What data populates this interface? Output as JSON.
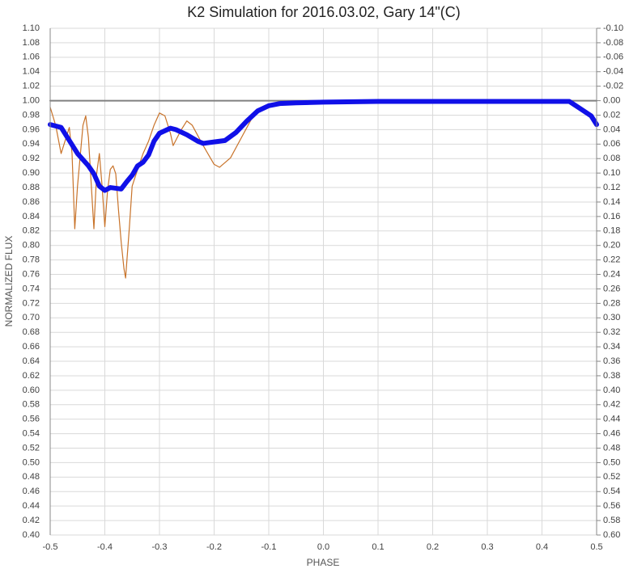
{
  "chart_data": {
    "type": "line",
    "title": "K2 Simulation for 2016.03.02, Gary 14\"(C)",
    "x_label": "PHASE",
    "y_label": "NORMALIZED FLUX",
    "xlim": [
      -0.5,
      0.5
    ],
    "xticks": [
      -0.5,
      -0.4,
      -0.3,
      -0.2,
      -0.1,
      {
        "value": 0,
        "label": "0.0"
      },
      0.1,
      0.2,
      0.3,
      0.4,
      0.5
    ],
    "ylim": [
      0.4,
      1.1
    ],
    "yticks": [
      {
        "value": 0.4,
        "label": "0.40"
      },
      0.42,
      0.44,
      0.46,
      0.48,
      {
        "value": 0.5,
        "label": "0.50"
      },
      0.52,
      0.54,
      0.56,
      0.58,
      {
        "value": 0.6,
        "label": "0.60"
      },
      0.62,
      0.64,
      0.66,
      0.68,
      {
        "value": 0.7,
        "label": "0.70"
      },
      0.72,
      0.74,
      0.76,
      0.78,
      {
        "value": 0.8,
        "label": "0.80"
      },
      0.82,
      0.84,
      0.86,
      0.88,
      {
        "value": 0.9,
        "label": "0.90"
      },
      0.92,
      0.94,
      0.96,
      0.98,
      {
        "value": 1,
        "label": "1.00"
      },
      1.02,
      1.04,
      1.06,
      1.08,
      {
        "value": 1.1,
        "label": "1.10"
      }
    ],
    "y2lim": [
      0.6,
      -0.1
    ],
    "y2ticks": [
      {
        "value": -0.1,
        "label": "-0.10"
      },
      -0.08,
      -0.06,
      -0.04,
      -0.02,
      {
        "value": 0,
        "label": "0.00"
      },
      0.02,
      0.04,
      0.06,
      0.08,
      {
        "value": 0.1,
        "label": "0.10"
      },
      0.12,
      0.14,
      0.16,
      0.18,
      {
        "value": 0.2,
        "label": "0.20"
      },
      0.22,
      0.24,
      0.26,
      0.28,
      {
        "value": 0.3,
        "label": "0.30"
      },
      0.32,
      0.34,
      0.36,
      0.38,
      {
        "value": 0.4,
        "label": "0.40"
      },
      0.42,
      0.44,
      0.46,
      0.48,
      {
        "value": 0.5,
        "label": "0.50"
      },
      0.52,
      0.54,
      0.56,
      0.58,
      {
        "value": 0.6,
        "label": "0.60"
      }
    ],
    "grid": true,
    "series": [
      {
        "color": "#808080",
        "width": 2,
        "x": [
          -0.5,
          0.5
        ],
        "values": [
          1,
          1
        ]
      },
      {
        "color": "#c8732a",
        "width": 1.2,
        "x": [
          -0.5,
          -0.49,
          -0.48,
          -0.465,
          -0.46,
          -0.455,
          -0.45,
          -0.44,
          -0.435,
          -0.43,
          -0.42,
          -0.415,
          -0.41,
          -0.405,
          -0.4,
          -0.395,
          -0.39,
          -0.385,
          -0.38,
          -0.375,
          -0.37,
          -0.365,
          -0.362,
          -0.355,
          -0.35,
          -0.34,
          -0.33,
          -0.32,
          -0.31,
          -0.3,
          -0.29,
          -0.28,
          -0.275,
          -0.26,
          -0.25,
          -0.24,
          -0.22,
          -0.2,
          -0.19,
          -0.17,
          -0.15,
          -0.13,
          -0.11,
          -0.09,
          -0.06,
          0
        ],
        "values": [
          0.991,
          0.966,
          0.927,
          0.963,
          0.927,
          0.823,
          0.882,
          0.966,
          0.979,
          0.949,
          0.823,
          0.899,
          0.927,
          0.882,
          0.826,
          0.876,
          0.905,
          0.91,
          0.899,
          0.849,
          0.804,
          0.768,
          0.755,
          0.826,
          0.882,
          0.905,
          0.927,
          0.944,
          0.966,
          0.983,
          0.979,
          0.955,
          0.938,
          0.96,
          0.972,
          0.966,
          0.938,
          0.912,
          0.908,
          0.921,
          0.949,
          0.977,
          0.991,
          0.997,
          0.998,
          0.999
        ]
      },
      {
        "color": "#1010e8",
        "width": 6,
        "x": [
          -0.5,
          -0.48,
          -0.47,
          -0.45,
          -0.43,
          -0.42,
          -0.41,
          -0.4,
          -0.39,
          -0.38,
          -0.37,
          -0.36,
          -0.35,
          -0.34,
          -0.33,
          -0.32,
          -0.31,
          -0.3,
          -0.28,
          -0.27,
          -0.25,
          -0.23,
          -0.22,
          -0.2,
          -0.18,
          -0.16,
          -0.14,
          -0.12,
          -0.1,
          -0.08,
          -0.05,
          0,
          0.1,
          0.2,
          0.3,
          0.4,
          0.45,
          0.47,
          0.49,
          0.5
        ],
        "values": [
          0.967,
          0.963,
          0.951,
          0.927,
          0.91,
          0.899,
          0.882,
          0.876,
          0.88,
          0.879,
          0.878,
          0.888,
          0.897,
          0.91,
          0.915,
          0.925,
          0.944,
          0.955,
          0.962,
          0.96,
          0.953,
          0.944,
          0.941,
          0.943,
          0.945,
          0.956,
          0.972,
          0.986,
          0.993,
          0.996,
          0.997,
          0.998,
          0.999,
          0.999,
          0.999,
          0.999,
          0.999,
          0.989,
          0.979,
          0.967
        ]
      }
    ]
  }
}
